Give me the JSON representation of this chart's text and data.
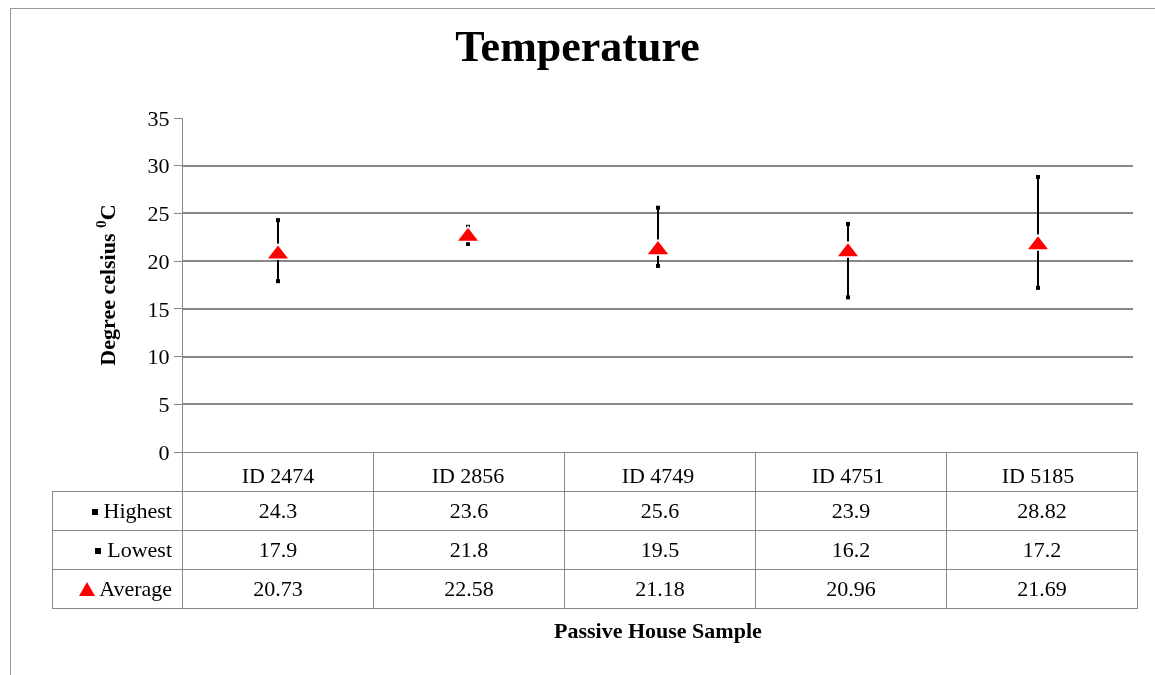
{
  "chart_data": {
    "type": "scatter",
    "title": "Temperature",
    "ylabel": "Degree celsius $^{0}$C",
    "categories": [
      "ID 2474",
      "ID 2856",
      "ID 4749",
      "ID 4751",
      "ID 5185"
    ],
    "series": [
      {
        "name": "Highest",
        "color": "#000000",
        "marker": "square",
        "values": [
          24.3,
          23.6,
          25.6,
          23.9,
          28.82
        ]
      },
      {
        "name": "Lowest",
        "color": "#000000",
        "marker": "square",
        "values": [
          17.9,
          21.8,
          19.5,
          16.2,
          17.2
        ]
      },
      {
        "name": "Average",
        "color": "#ff0000",
        "marker": "triangle",
        "values": [
          20.73,
          22.58,
          21.18,
          20.96,
          21.69
        ]
      }
    ],
    "annotations": [
      "Passive House Sample"
    ],
    "ylim": [
      0,
      35
    ],
    "yticks": [
      0,
      5,
      10,
      15,
      20,
      25,
      30,
      35
    ],
    "grid": "y",
    "legend": "bottom left",
    "data_labels": true
  }
}
